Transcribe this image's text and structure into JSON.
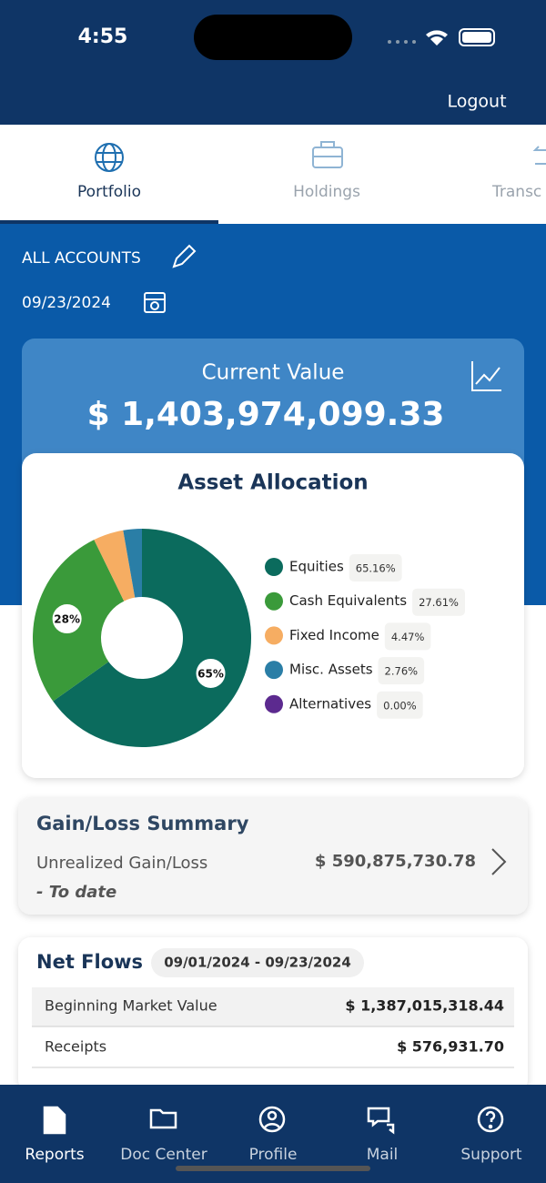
{
  "status": {
    "time": "4:55"
  },
  "header": {
    "logout": "Logout"
  },
  "tabs": [
    "Portfolio",
    "Holdings",
    "Transc"
  ],
  "account": {
    "name": "ALL ACCOUNTS",
    "date": "09/23/2024"
  },
  "current_value": {
    "label": "Current Value",
    "amount": "$ 1,403,974,099.33"
  },
  "chart_data": {
    "type": "pie",
    "title": "Asset Allocation",
    "donut": true,
    "categories": [
      "Equities",
      "Cash Equivalents",
      "Fixed Income",
      "Misc. Assets",
      "Alternatives"
    ],
    "values": [
      65.16,
      27.61,
      4.47,
      2.76,
      0.0
    ],
    "value_labels": [
      "65.16%",
      "27.61%",
      "4.47%",
      "2.76%",
      "0.00%"
    ],
    "slice_labels": [
      "65%",
      "28%",
      null,
      null,
      null
    ],
    "colors": [
      "#0b6b5d",
      "#3a9a3a",
      "#f6ad62",
      "#2a7ea6",
      "#5c2a8f"
    ]
  },
  "gain_loss": {
    "title": "Gain/Loss Summary",
    "label": "Unrealized Gain/Loss",
    "note": "- To date",
    "amount": "$ 590,875,730.78"
  },
  "net_flows": {
    "title": "Net Flows",
    "period": "09/01/2024 - 09/23/2024",
    "rows": [
      [
        "Beginning Market Value",
        "$ 1,387,015,318.44"
      ],
      [
        "Receipts",
        "$ 576,931.70"
      ]
    ]
  },
  "nav": [
    "Reports",
    "Doc Center",
    "Profile",
    "Mail",
    "Support"
  ]
}
